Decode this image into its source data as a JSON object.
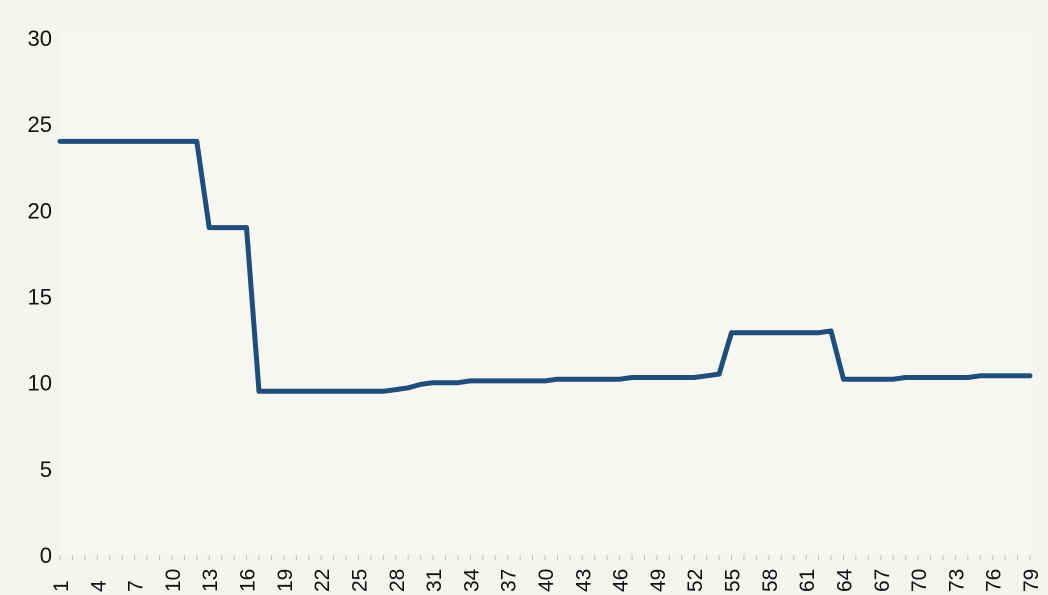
{
  "chart_data": {
    "type": "line",
    "title": "",
    "xlabel": "",
    "ylabel": "",
    "xlim": [
      1,
      79
    ],
    "ylim": [
      0,
      30
    ],
    "y_ticks": [
      0,
      5,
      10,
      15,
      20,
      25,
      30
    ],
    "x_tick_labels": [
      "1",
      "4",
      "7",
      "10",
      "13",
      "16",
      "19",
      "22",
      "25",
      "28",
      "31",
      "34",
      "37",
      "40",
      "43",
      "46",
      "49",
      "52",
      "55",
      "58",
      "61",
      "64",
      "67",
      "70",
      "73",
      "76",
      "79"
    ],
    "grid": false,
    "legend": "none",
    "line_color": "#1f4e79",
    "series": [
      {
        "x": [
          1,
          2,
          3,
          4,
          5,
          6,
          7,
          8,
          9,
          10,
          11,
          12,
          13,
          14,
          15,
          16,
          17,
          18,
          19,
          20,
          21,
          22,
          23,
          24,
          25,
          26,
          27,
          28,
          29,
          30,
          31,
          32,
          33,
          34,
          35,
          36,
          37,
          38,
          39,
          40,
          41,
          42,
          43,
          44,
          45,
          46,
          47,
          48,
          49,
          50,
          51,
          52,
          53,
          54,
          55,
          56,
          57,
          58,
          59,
          60,
          61,
          62,
          63,
          64,
          65,
          66,
          67,
          68,
          69,
          70,
          71,
          72,
          73,
          74,
          75,
          76,
          77,
          78,
          79
        ],
        "values": [
          24,
          24,
          24,
          24,
          24,
          24,
          24,
          24,
          24,
          24,
          24,
          24,
          19,
          19,
          19,
          19,
          9.5,
          9.5,
          9.5,
          9.5,
          9.5,
          9.5,
          9.5,
          9.5,
          9.5,
          9.5,
          9.5,
          9.6,
          9.7,
          9.9,
          10,
          10,
          10,
          10.1,
          10.1,
          10.1,
          10.1,
          10.1,
          10.1,
          10.1,
          10.2,
          10.2,
          10.2,
          10.2,
          10.2,
          10.2,
          10.3,
          10.3,
          10.3,
          10.3,
          10.3,
          10.3,
          10.4,
          10.5,
          12.9,
          12.9,
          12.9,
          12.9,
          12.9,
          12.9,
          12.9,
          12.9,
          13,
          10.2,
          10.2,
          10.2,
          10.2,
          10.2,
          10.3,
          10.3,
          10.3,
          10.3,
          10.3,
          10.3,
          10.4,
          10.4,
          10.4,
          10.4,
          10.4
        ]
      }
    ]
  }
}
